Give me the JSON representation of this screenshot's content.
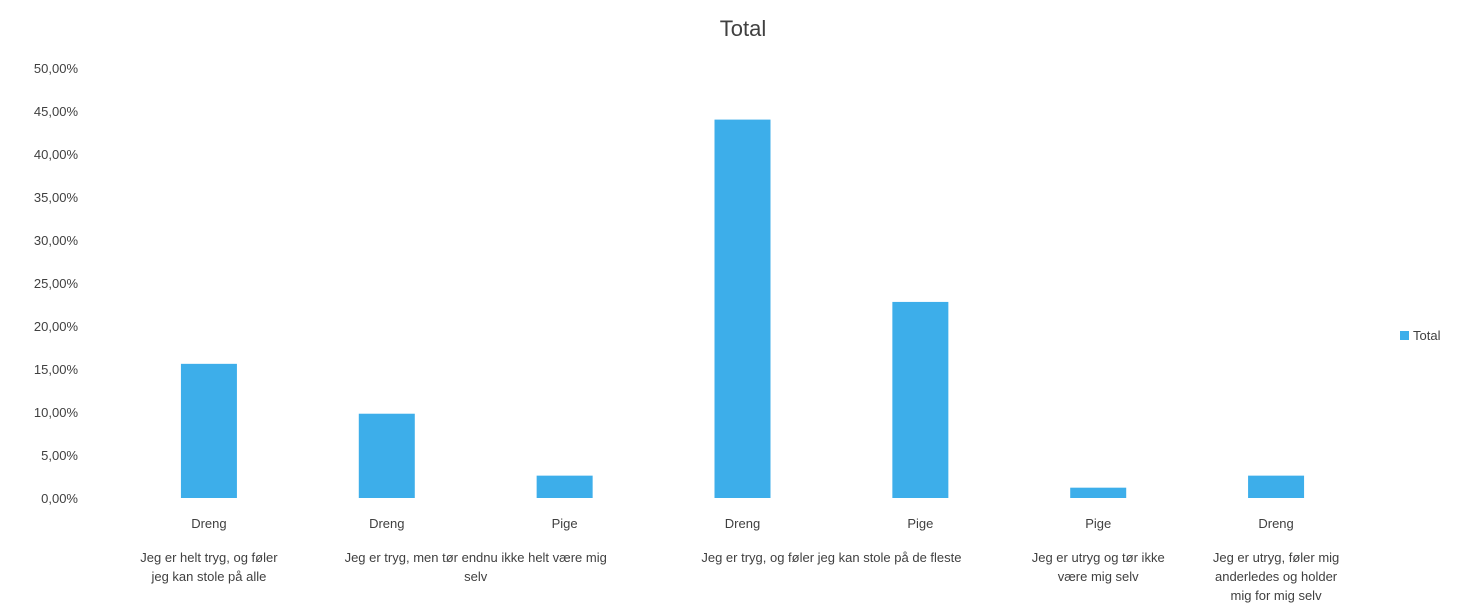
{
  "chart_data": {
    "type": "bar",
    "title": "Total",
    "y_ticks": [
      "0,00%",
      "5,00%",
      "10,00%",
      "15,00%",
      "20,00%",
      "25,00%",
      "30,00%",
      "35,00%",
      "40,00%",
      "45,00%",
      "50,00%"
    ],
    "ylim": [
      0,
      50
    ],
    "grid": false,
    "legend": {
      "position": "right",
      "label": "Total"
    },
    "colors": {
      "bar": "#3daeea"
    },
    "categories": [
      {
        "label": "Dreng",
        "group": "Jeg er helt tryg, og føler jeg kan stole på alle"
      },
      {
        "label": "Dreng",
        "group": "Jeg er tryg, men tør endnu ikke helt være mig selv"
      },
      {
        "label": "Pige",
        "group": "Jeg er tryg, men tør endnu ikke helt være mig selv"
      },
      {
        "label": "Dreng",
        "group": "Jeg er tryg, og føler jeg kan stole på de fleste"
      },
      {
        "label": "Pige",
        "group": "Jeg er tryg, og føler jeg kan stole på de fleste"
      },
      {
        "label": "Pige",
        "group": "Jeg er utryg og tør ikke være mig selv"
      },
      {
        "label": "Dreng",
        "group": "Jeg er utryg, føler mig anderledes og holder mig for mig selv"
      }
    ],
    "groups": [
      {
        "lines": [
          "Jeg er helt tryg, og føler",
          "jeg kan stole på alle"
        ]
      },
      {
        "lines": [
          "Jeg er tryg, men tør endnu ikke helt være mig",
          "selv"
        ]
      },
      {
        "lines": [
          "Jeg er tryg, og føler jeg kan stole på de fleste"
        ]
      },
      {
        "lines": [
          "Jeg er utryg og tør ikke",
          "være mig selv"
        ]
      },
      {
        "lines": [
          "Jeg er utryg, føler mig",
          "anderledes og holder",
          "mig for mig selv"
        ]
      }
    ],
    "series": [
      {
        "name": "Total",
        "values": [
          15.6,
          9.8,
          2.6,
          44.0,
          22.8,
          1.2,
          2.6
        ]
      }
    ]
  }
}
